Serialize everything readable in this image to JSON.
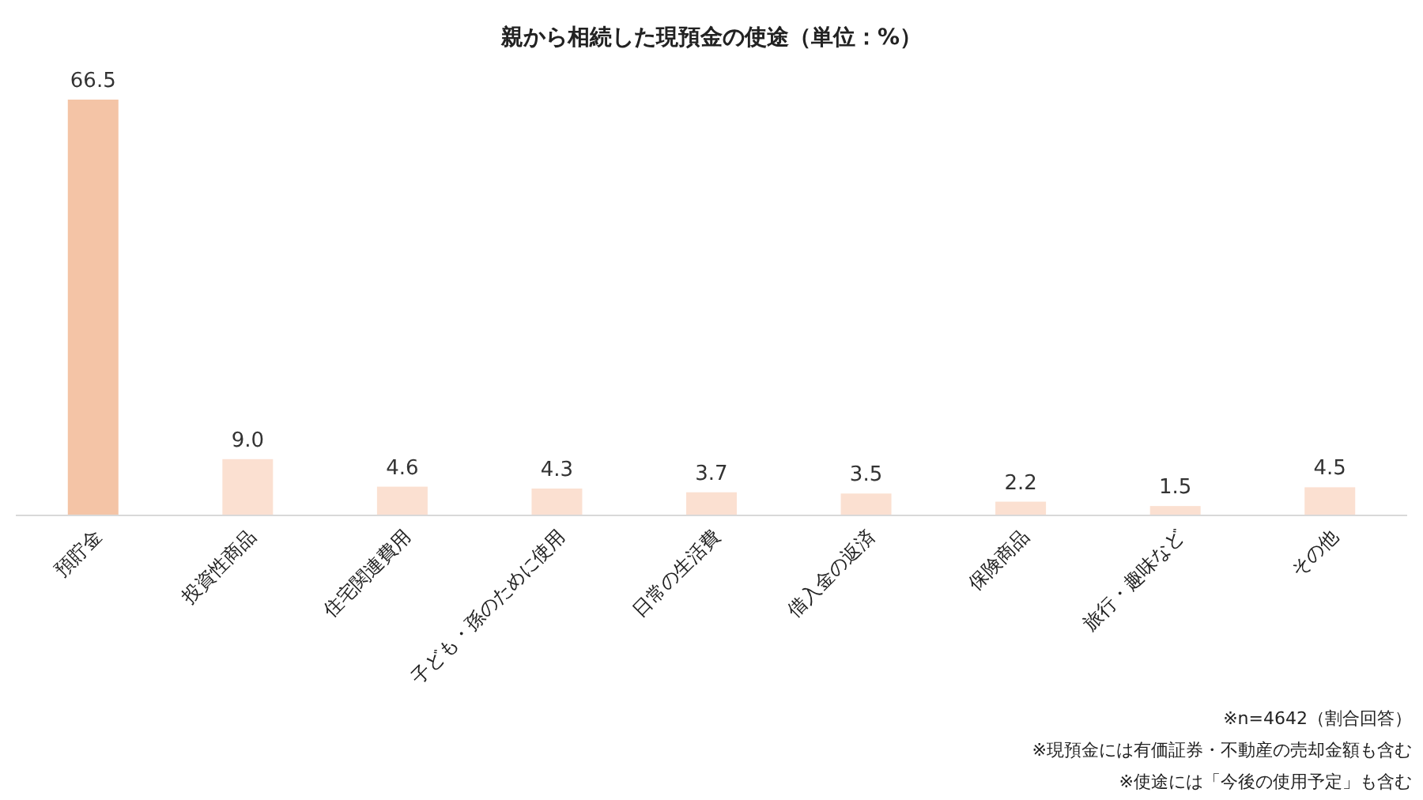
{
  "chart_data": {
    "type": "bar",
    "title": "親から相続した現預金の使途（単位：%）",
    "categories": [
      "預貯金",
      "投資性商品",
      "住宅関連費用",
      "子ども・孫のために使用",
      "日常の生活費",
      "借入金の返済",
      "保険商品",
      "旅行・趣味など",
      "その他"
    ],
    "values": [
      66.5,
      9.0,
      4.6,
      4.3,
      3.7,
      3.5,
      2.2,
      1.5,
      4.5
    ],
    "value_labels": [
      "66.5",
      "9.0",
      "4.6",
      "4.3",
      "3.7",
      "3.5",
      "2.2",
      "1.5",
      "4.5"
    ],
    "colors": [
      "#f4c4a6",
      "#fbe0d1",
      "#fbe0d1",
      "#fbe0d1",
      "#fbe0d1",
      "#fbe0d1",
      "#fbe0d1",
      "#fbe0d1",
      "#fbe0d1"
    ],
    "annotations": [
      "※n=4642（割合回答）",
      "※現預金には有価証券・不動産の売却金額も含む",
      "※使途には「今後の使用予定」も含む"
    ]
  }
}
